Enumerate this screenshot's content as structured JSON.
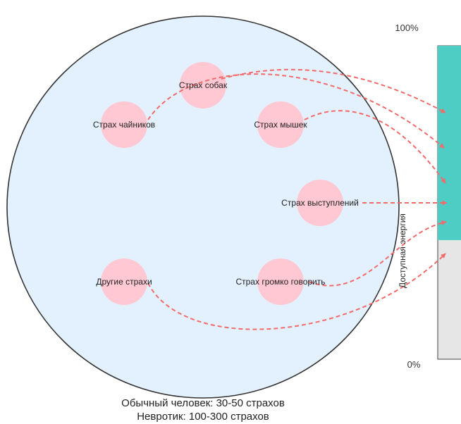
{
  "colors": {
    "circle_fill": "#e3f0fd",
    "circle_stroke": "#333333",
    "fear_bubble": "#ffc8d2",
    "arrow": "#f26b6b",
    "energy_available": "#4ecdc4",
    "energy_empty": "#e6e6e6"
  },
  "fears": [
    {
      "id": "dogs",
      "label": "Страх собак"
    },
    {
      "id": "teapots",
      "label": "Страх чайников"
    },
    {
      "id": "mice",
      "label": "Страх мышек"
    },
    {
      "id": "speeches",
      "label": "Страх выступлений"
    },
    {
      "id": "other",
      "label": "Другие страхи"
    },
    {
      "id": "loud",
      "label": "Страх громко говорить"
    }
  ],
  "energy": {
    "top_label": "100%",
    "bottom_label": "0%",
    "axis_label": "Доступная энергия",
    "available_fraction": 0.62
  },
  "captions": {
    "line1": "Обычный человек: 30-50 страхов",
    "line2": "Невротик: 100-300 страхов"
  }
}
